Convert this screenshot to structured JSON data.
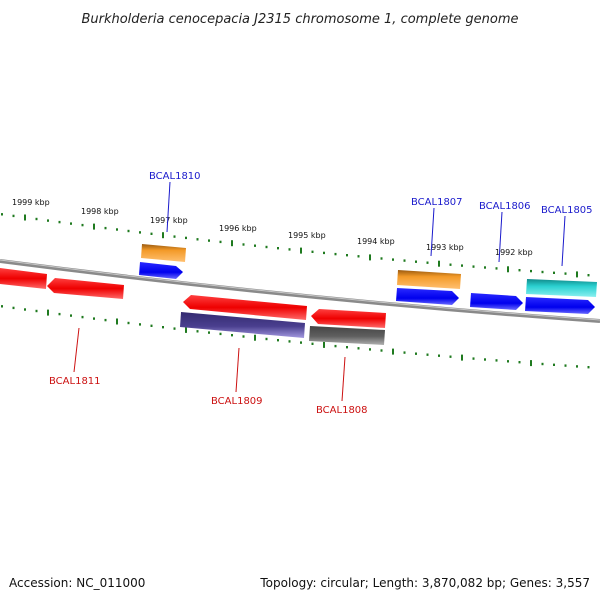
{
  "title": "Burkholderia cenocepacia J2315 chromosome 1, complete genome",
  "footer": {
    "accession": "Accession: NC_011000",
    "summary": "Topology: circular; Length: 3,870,082 bp; Genes: 3,557"
  },
  "scale": {
    "tick_labels": [
      "1999 kbp",
      "1998 kbp",
      "1997 kbp",
      "1996 kbp",
      "1995 kbp",
      "1994 kbp",
      "1993 kbp",
      "1992 kbp"
    ]
  },
  "genes": {
    "labels": [
      "BCAL1810",
      "BCAL1807",
      "BCAL1806",
      "BCAL1805",
      "BCAL1811",
      "BCAL1809",
      "BCAL1808"
    ]
  },
  "colors": {
    "forward_label": "#1a1acc",
    "reverse_label": "#cc1111",
    "backbone": "#8a8a8a",
    "ticks": "#1f7a1f",
    "red": "#ee1111",
    "blue": "#1111ee",
    "orange": "#f09020",
    "cyan": "#22c8c8",
    "purple": "#4a3f8f",
    "gray": "#5a5a5a"
  }
}
